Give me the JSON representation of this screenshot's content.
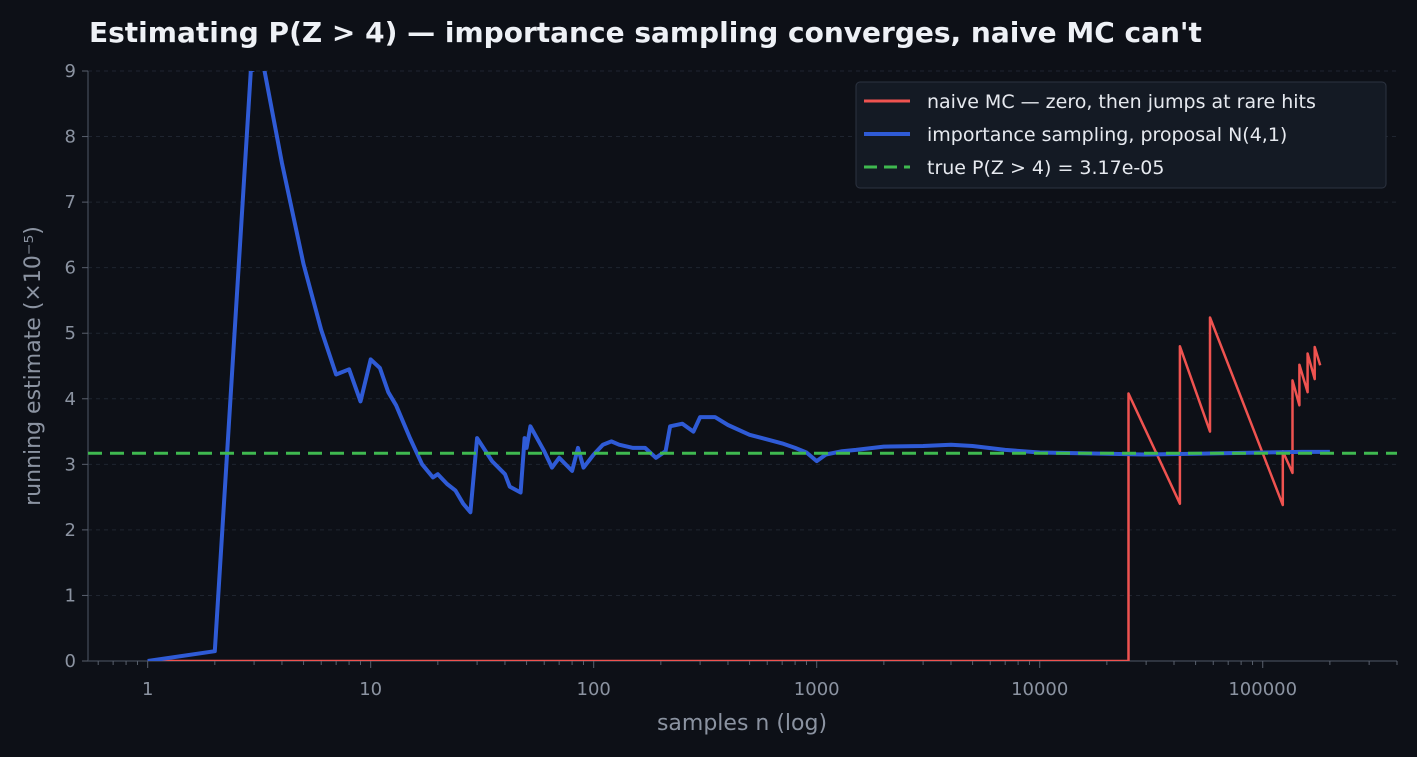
{
  "chart_data": {
    "type": "line",
    "title": "Estimating P(Z > 4) — importance sampling converges, naive MC can't",
    "xlabel": "samples n (log)",
    "ylabel": "running estimate (×10⁻⁵)",
    "x_scale": "log",
    "xlim": [
      0.54,
      400000
    ],
    "ylim": [
      0,
      9
    ],
    "x_ticks": [
      1,
      10,
      100,
      1000,
      10000,
      100000
    ],
    "x_tick_labels": [
      "1",
      "10",
      "100",
      "1000",
      "10000",
      "100000"
    ],
    "y_ticks": [
      0,
      1,
      2,
      3,
      4,
      5,
      6,
      7,
      8,
      9
    ],
    "y_tick_labels": [
      "0",
      "1",
      "2",
      "3",
      "4",
      "5",
      "6",
      "7",
      "8",
      "9"
    ],
    "grid": "horizontal, dashed",
    "legend_position": "top-right",
    "series": [
      {
        "name": "naive MC — zero, then jumps at rare hits",
        "color": "#ef5350",
        "style": "solid",
        "points": [
          [
            1,
            0
          ],
          [
            25000,
            0
          ],
          [
            25001,
            4.08
          ],
          [
            42500,
            2.4
          ],
          [
            42501,
            4.8
          ],
          [
            58000,
            3.5
          ],
          [
            58001,
            5.24
          ],
          [
            123000,
            2.38
          ],
          [
            123001,
            3.2
          ],
          [
            136000,
            2.87
          ],
          [
            136001,
            4.28
          ],
          [
            146000,
            3.9
          ],
          [
            146001,
            4.52
          ],
          [
            159000,
            4.1
          ],
          [
            159001,
            4.69
          ],
          [
            171000,
            4.3
          ],
          [
            171001,
            4.79
          ],
          [
            181000,
            4.51
          ]
        ]
      },
      {
        "name": "importance sampling, proposal N(4,1)",
        "color": "#2f5bd6",
        "style": "solid",
        "points": [
          [
            1,
            0
          ],
          [
            2,
            0.15
          ],
          [
            2.9,
            9.0
          ],
          [
            3.3,
            9.1
          ],
          [
            4,
            7.6
          ],
          [
            5,
            6.05
          ],
          [
            6,
            5.05
          ],
          [
            7,
            4.37
          ],
          [
            8,
            4.45
          ],
          [
            9,
            3.96
          ],
          [
            10,
            4.6
          ],
          [
            11,
            4.47
          ],
          [
            12,
            4.1
          ],
          [
            13,
            3.9
          ],
          [
            15,
            3.4
          ],
          [
            17,
            3.0
          ],
          [
            19,
            2.8
          ],
          [
            20,
            2.85
          ],
          [
            22,
            2.7
          ],
          [
            24,
            2.6
          ],
          [
            26,
            2.4
          ],
          [
            28,
            2.27
          ],
          [
            30,
            3.4
          ],
          [
            35,
            3.05
          ],
          [
            40,
            2.85
          ],
          [
            42,
            2.66
          ],
          [
            47,
            2.57
          ],
          [
            49,
            3.4
          ],
          [
            50,
            3.25
          ],
          [
            52,
            3.58
          ],
          [
            60,
            3.2
          ],
          [
            65,
            2.95
          ],
          [
            70,
            3.1
          ],
          [
            80,
            2.9
          ],
          [
            85,
            3.25
          ],
          [
            90,
            2.95
          ],
          [
            100,
            3.15
          ],
          [
            110,
            3.3
          ],
          [
            120,
            3.35
          ],
          [
            130,
            3.3
          ],
          [
            150,
            3.25
          ],
          [
            170,
            3.25
          ],
          [
            190,
            3.1
          ],
          [
            210,
            3.2
          ],
          [
            220,
            3.58
          ],
          [
            250,
            3.62
          ],
          [
            280,
            3.5
          ],
          [
            300,
            3.72
          ],
          [
            350,
            3.72
          ],
          [
            400,
            3.6
          ],
          [
            500,
            3.45
          ],
          [
            600,
            3.38
          ],
          [
            700,
            3.32
          ],
          [
            800,
            3.25
          ],
          [
            900,
            3.18
          ],
          [
            1000,
            3.05
          ],
          [
            1100,
            3.15
          ],
          [
            1300,
            3.2
          ],
          [
            1500,
            3.22
          ],
          [
            2000,
            3.27
          ],
          [
            3000,
            3.28
          ],
          [
            4000,
            3.3
          ],
          [
            5000,
            3.28
          ],
          [
            7000,
            3.22
          ],
          [
            10000,
            3.18
          ],
          [
            20000,
            3.16
          ],
          [
            30000,
            3.15
          ],
          [
            50000,
            3.16
          ],
          [
            100000,
            3.18
          ],
          [
            150000,
            3.19
          ],
          [
            200000,
            3.19
          ]
        ]
      },
      {
        "name": "true P(Z > 4) = 3.17e-05",
        "color": "#3fb950",
        "style": "dashed",
        "points": [
          [
            0.54,
            3.17
          ],
          [
            400000,
            3.17
          ]
        ]
      }
    ]
  }
}
